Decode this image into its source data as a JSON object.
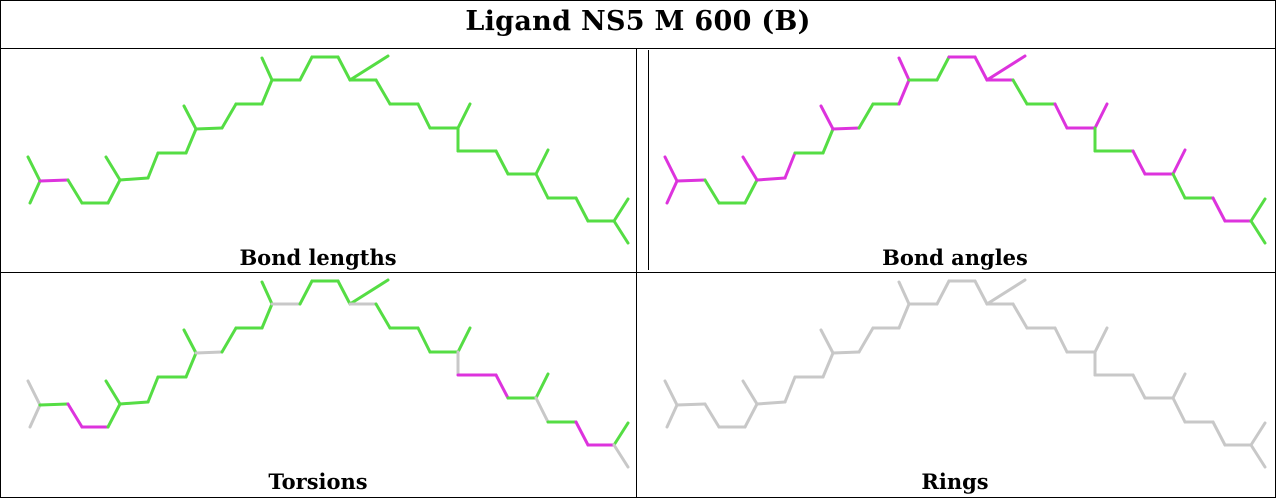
{
  "title": "Ligand NS5 M 600 (B)",
  "panels": [
    {
      "label": "Bond lengths"
    },
    {
      "label": "Bond angles"
    },
    {
      "label": "Torsions"
    },
    {
      "label": "Rings"
    }
  ],
  "colors": {
    "ok": "#55dd44",
    "outlier": "#dd33dd",
    "none": "#c8c8c8"
  }
}
